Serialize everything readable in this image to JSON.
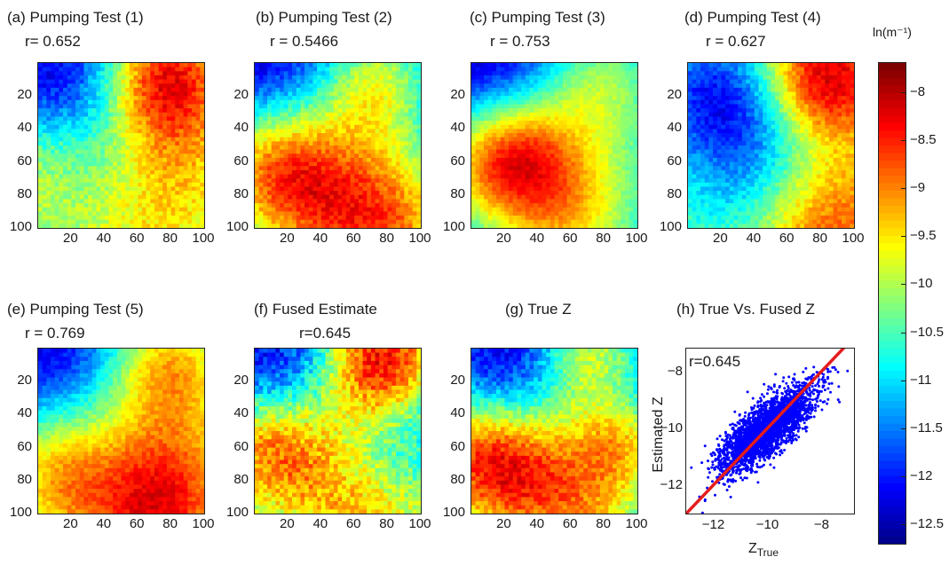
{
  "panels": [
    {
      "id": "a",
      "title": "(a) Pumping Test (1)",
      "r_text": "r= 0.652",
      "seed": 11
    },
    {
      "id": "b",
      "title": "(b) Pumping Test (2)",
      "r_text": "r = 0.5466",
      "seed": 23
    },
    {
      "id": "c",
      "title": "(c) Pumping Test (3)",
      "r_text": "r = 0.753",
      "seed": 37
    },
    {
      "id": "d",
      "title": "(d) Pumping Test (4)",
      "r_text": "r = 0.627",
      "seed": 41
    },
    {
      "id": "e",
      "title": "(e) Pumping Test (5)",
      "r_text": "r = 0.769",
      "seed": 53
    },
    {
      "id": "f",
      "title": "(f) Fused Estimate",
      "r_text": "r=0.645",
      "seed": 67
    },
    {
      "id": "g",
      "title": "(g) True Z",
      "r_text": "",
      "seed": 79
    }
  ],
  "scatter_panel": {
    "title": "(h)  True Vs. Fused    Z",
    "r_text": "r=0.645"
  },
  "axis_ticks": [
    "20",
    "40",
    "60",
    "80",
    "100"
  ],
  "colorbar": {
    "unit_label": "ln(m⁻¹)",
    "range": [
      -12.7,
      -7.7
    ],
    "ticks": [
      "-8",
      "-8.5",
      "-9",
      "-9.5",
      "-10",
      "-10.5",
      "-11",
      "-11.5",
      "-12",
      "-12.5"
    ],
    "colormap": "jet"
  },
  "chart_data": [
    {
      "type": "heatmap",
      "title": "(a) Pumping Test (1)",
      "annotation": "r= 0.652",
      "x_range": [
        1,
        100
      ],
      "y_range": [
        1,
        100
      ],
      "x_ticks": [
        20,
        40,
        60,
        80,
        100
      ],
      "y_ticks": [
        20,
        40,
        60,
        80,
        100
      ],
      "color_range": [
        -12.7,
        -7.7
      ]
    },
    {
      "type": "heatmap",
      "title": "(b) Pumping Test (2)",
      "annotation": "r = 0.5466",
      "x_range": [
        1,
        100
      ],
      "y_range": [
        1,
        100
      ],
      "x_ticks": [
        20,
        40,
        60,
        80,
        100
      ],
      "y_ticks": [
        20,
        40,
        60,
        80,
        100
      ],
      "color_range": [
        -12.7,
        -7.7
      ]
    },
    {
      "type": "heatmap",
      "title": "(c) Pumping Test (3)",
      "annotation": "r = 0.753",
      "x_range": [
        1,
        100
      ],
      "y_range": [
        1,
        100
      ],
      "x_ticks": [
        20,
        40,
        60,
        80,
        100
      ],
      "y_ticks": [
        20,
        40,
        60,
        80,
        100
      ],
      "color_range": [
        -12.7,
        -7.7
      ]
    },
    {
      "type": "heatmap",
      "title": "(d) Pumping Test (4)",
      "annotation": "r = 0.627",
      "x_range": [
        1,
        100
      ],
      "y_range": [
        1,
        100
      ],
      "x_ticks": [
        20,
        40,
        60,
        80,
        100
      ],
      "y_ticks": [
        20,
        40,
        60,
        80,
        100
      ],
      "color_range": [
        -12.7,
        -7.7
      ]
    },
    {
      "type": "heatmap",
      "title": "(e) Pumping Test (5)",
      "annotation": "r = 0.769",
      "x_range": [
        1,
        100
      ],
      "y_range": [
        1,
        100
      ],
      "x_ticks": [
        20,
        40,
        60,
        80,
        100
      ],
      "y_ticks": [
        20,
        40,
        60,
        80,
        100
      ],
      "color_range": [
        -12.7,
        -7.7
      ]
    },
    {
      "type": "heatmap",
      "title": "(f) Fused Estimate",
      "annotation": "r=0.645",
      "x_range": [
        1,
        100
      ],
      "y_range": [
        1,
        100
      ],
      "x_ticks": [
        20,
        40,
        60,
        80,
        100
      ],
      "y_ticks": [
        20,
        40,
        60,
        80,
        100
      ],
      "color_range": [
        -12.7,
        -7.7
      ]
    },
    {
      "type": "heatmap",
      "title": "(g) True Z",
      "x_range": [
        1,
        100
      ],
      "y_range": [
        1,
        100
      ],
      "x_ticks": [
        20,
        40,
        60,
        80,
        100
      ],
      "y_ticks": [
        20,
        40,
        60,
        80,
        100
      ],
      "color_range": [
        -12.7,
        -7.7
      ]
    },
    {
      "type": "scatter",
      "title": "(h)  True Vs. Fused    Z",
      "annotation": "r=0.645",
      "xlabel": "Z_True",
      "ylabel": "Estimated Z",
      "xlim": [
        -13,
        -6.8
      ],
      "ylim": [
        -13,
        -7.2
      ],
      "x_ticks": [
        -12,
        -10,
        -8
      ],
      "y_ticks": [
        -12,
        -10,
        -8
      ],
      "point_cloud": {
        "x_mean": -10.0,
        "x_std": 0.85,
        "slope": 0.66,
        "resid_std": 0.48,
        "n": 3000,
        "color": "#0000ff"
      },
      "reference_line": {
        "x": [
          -13,
          -6.8
        ],
        "y": [
          -13,
          -6.8
        ],
        "color": "#e51c1c"
      }
    }
  ]
}
